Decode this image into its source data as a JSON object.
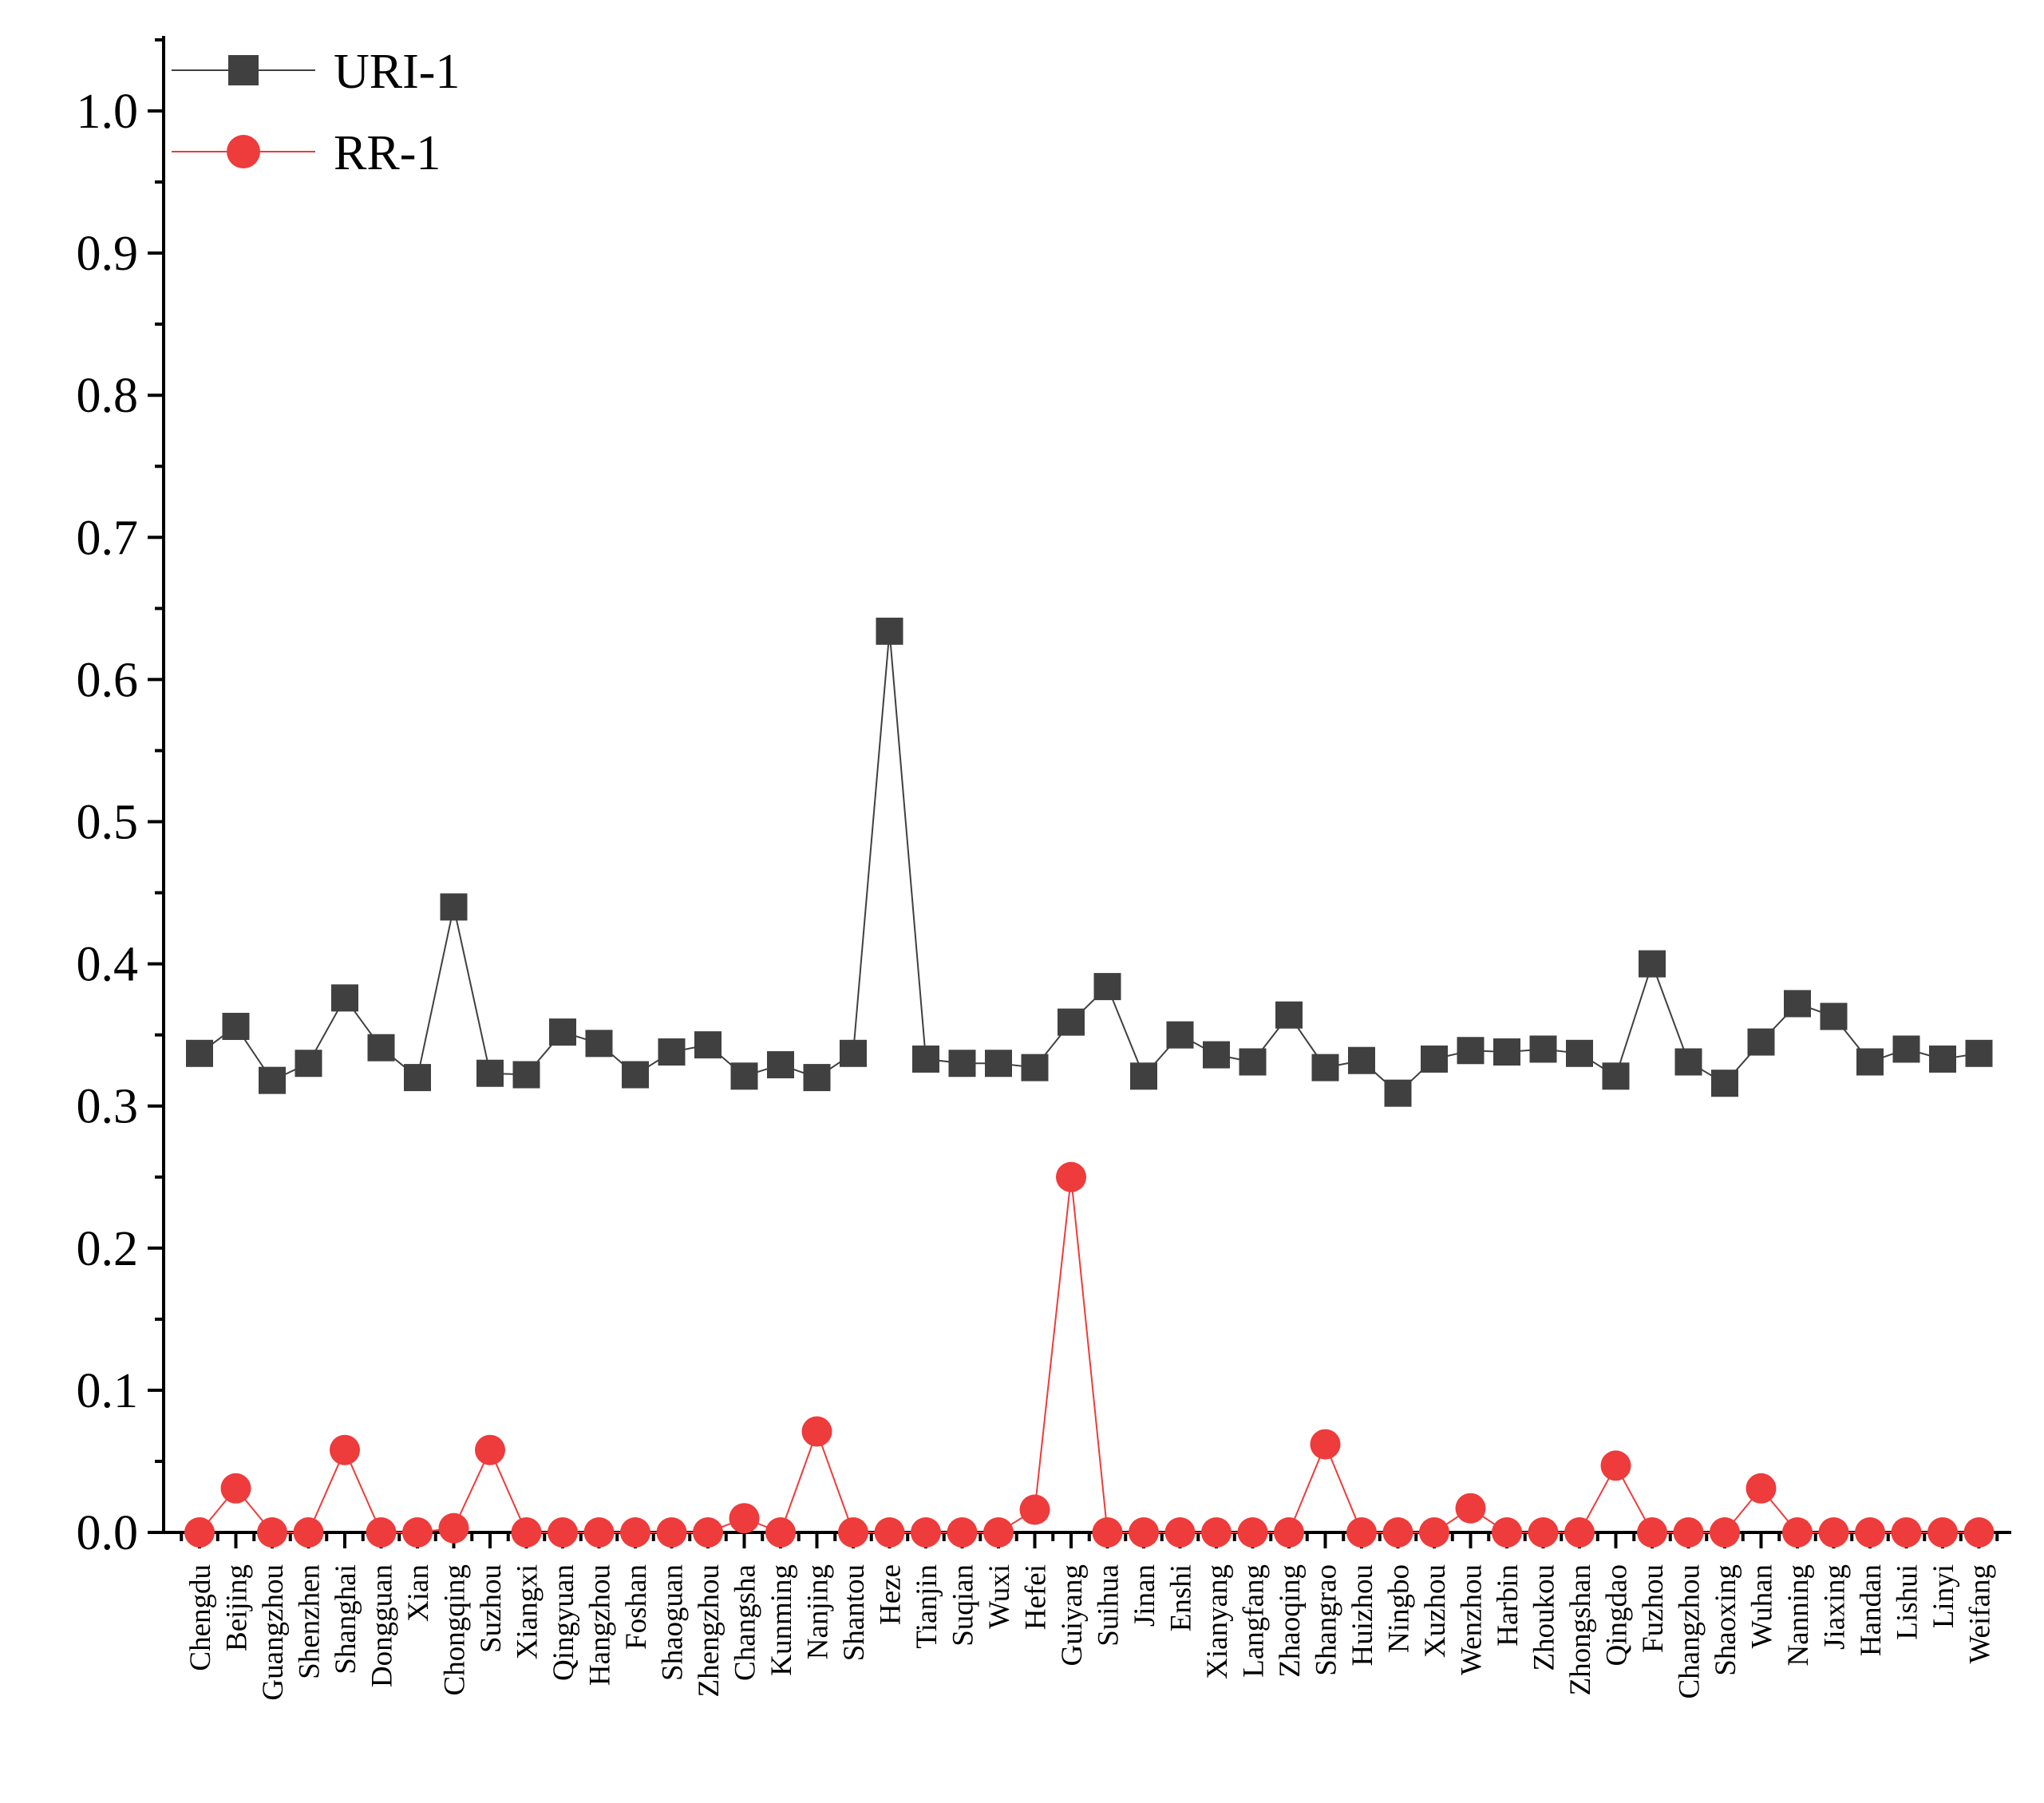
{
  "chart_data": {
    "type": "line",
    "title": "",
    "xlabel": "",
    "ylabel": "",
    "ylim": [
      0,
      1.05
    ],
    "yticks": [
      "0.0",
      "0.1",
      "0.2",
      "0.3",
      "0.4",
      "0.5",
      "0.6",
      "0.7",
      "0.8",
      "0.9",
      "1.0"
    ],
    "legend_position": "top-left",
    "categories": [
      "Chengdu",
      "Beijing",
      "Guangzhou",
      "Shenzhen",
      "Shanghai",
      "Dongguan",
      "Xian",
      "Chongqing",
      "Suzhou",
      "Xiangxi",
      "Qingyuan",
      "Hangzhou",
      "Foshan",
      "Shaoguan",
      "Zhengzhou",
      "Changsha",
      "Kunming",
      "Nanjing",
      "Shantou",
      "Heze",
      "Tianjin",
      "Suqian",
      "Wuxi",
      "Hefei",
      "Guiyang",
      "Suihua",
      "Jinan",
      "Enshi",
      "Xianyang",
      "Langfang",
      "Zhaoqing",
      "Shangrao",
      "Huizhou",
      "Ningbo",
      "Xuzhou",
      "Wenzhou",
      "Harbin",
      "Zhoukou",
      "Zhongshan",
      "Qingdao",
      "Fuzhou",
      "Changzhou",
      "Shaoxing",
      "Wuhan",
      "Nanning",
      "Jiaxing",
      "Handan",
      "Lishui",
      "Linyi",
      "Weifang"
    ],
    "series": [
      {
        "name": "URI-1",
        "color": "#404040",
        "marker": "square",
        "values": [
          0.337,
          0.356,
          0.318,
          0.33,
          0.376,
          0.341,
          0.32,
          0.44,
          0.323,
          0.322,
          0.352,
          0.344,
          0.322,
          0.338,
          0.343,
          0.321,
          0.329,
          0.32,
          0.337,
          0.634,
          0.333,
          0.33,
          0.33,
          0.327,
          0.359,
          0.384,
          0.321,
          0.35,
          0.336,
          0.331,
          0.364,
          0.327,
          0.332,
          0.309,
          0.333,
          0.339,
          0.338,
          0.34,
          0.337,
          0.321,
          0.4,
          0.331,
          0.316,
          0.345,
          0.372,
          0.363,
          0.331,
          0.34,
          0.333,
          0.337
        ]
      },
      {
        "name": "RR-1",
        "color": "#ee3b3b",
        "marker": "circle",
        "values": [
          0.0,
          0.031,
          0.0,
          0.0,
          0.058,
          0.0,
          0.0,
          0.003,
          0.058,
          0.0,
          0.0,
          0.0,
          0.0,
          0.0,
          0.0,
          0.01,
          0.0,
          0.071,
          0.0,
          0.0,
          0.0,
          0.0,
          0.0,
          0.016,
          0.25,
          0.0,
          0.0,
          0.0,
          0.0,
          0.0,
          0.0,
          0.062,
          0.0,
          0.0,
          0.0,
          0.017,
          0.0,
          0.0,
          0.0,
          0.047,
          0.0,
          0.0,
          0.0,
          0.031,
          0.0,
          0.0,
          0.0,
          0.0,
          0.0,
          0.0
        ]
      }
    ]
  }
}
